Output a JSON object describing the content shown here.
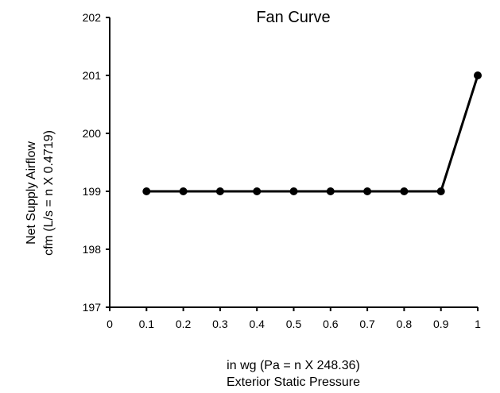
{
  "chart_data": {
    "type": "line",
    "title": "Fan Curve",
    "xlabel": [
      "in wg (Pa = n X 248.36)",
      "Exterior Static Pressure"
    ],
    "ylabel": [
      "Net Supply Airflow",
      "cfm (L/s = n X 0.4719)"
    ],
    "xlim": [
      0,
      1
    ],
    "ylim": [
      197,
      202
    ],
    "xticks": [
      "0",
      "0.1",
      "0.2",
      "0.3",
      "0.4",
      "0.5",
      "0.6",
      "0.7",
      "0.8",
      "0.9",
      "1"
    ],
    "yticks": [
      "197",
      "198",
      "199",
      "200",
      "201",
      "202"
    ],
    "grid": false,
    "series": [
      {
        "x": [
          0.1,
          0.2,
          0.3,
          0.4,
          0.5,
          0.6,
          0.7,
          0.8,
          0.9,
          1.0
        ],
        "y": [
          199,
          199,
          199,
          199,
          199,
          199,
          199,
          199,
          199,
          201
        ]
      }
    ],
    "colors": {
      "line": "#000000",
      "marker": "#000000",
      "axis": "#000000"
    }
  }
}
